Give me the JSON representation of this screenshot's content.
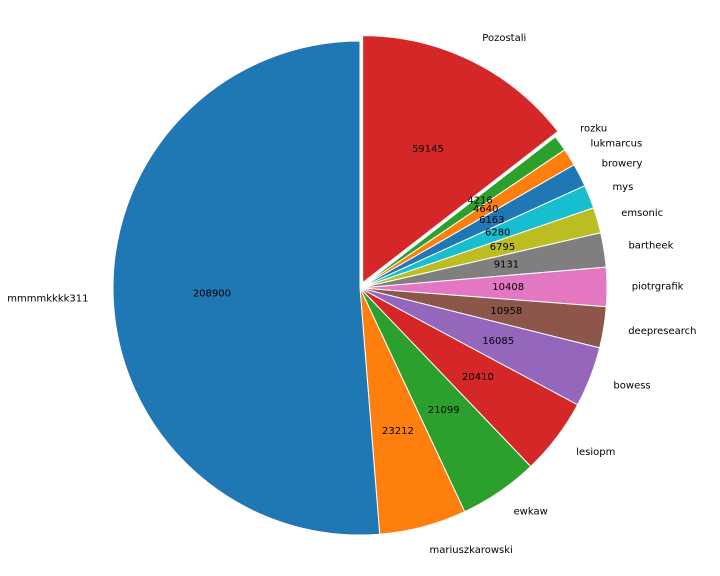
{
  "chart_data": {
    "type": "pie",
    "title": "",
    "start_angle_deg": 90,
    "direction": "clockwise",
    "explode_first": true,
    "labels": [
      "Pozostali",
      "rozku",
      "lukmarcus",
      "browery",
      "mys",
      "emsonic",
      "bartheek",
      "piotrgrafik",
      "deepresearch",
      "bowess",
      "lesiopm",
      "ewkaw",
      "mariuszkarowski",
      "mmmmkkkk311"
    ],
    "values": [
      59145,
      4216,
      4640,
      6163,
      6280,
      6795,
      9131,
      10408,
      10958,
      16085,
      20410,
      21099,
      23212,
      208900
    ],
    "colors": [
      "#d62728",
      "#2ca02c",
      "#ff7f0e",
      "#1f77b4",
      "#17becf",
      "#bcbd22",
      "#7f7f7f",
      "#e377c2",
      "#8c564b",
      "#9467bd",
      "#d62728",
      "#2ca02c",
      "#ff7f0e",
      "#1f77b4"
    ]
  }
}
